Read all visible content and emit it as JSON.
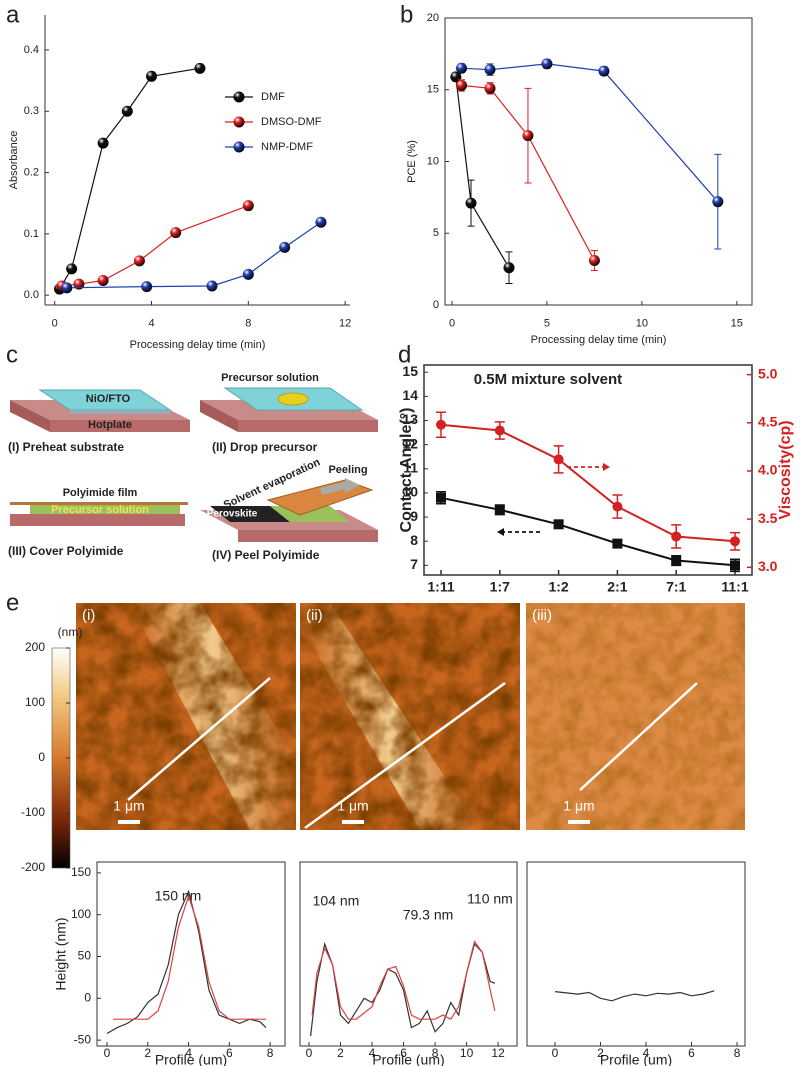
{
  "panel_labels": [
    "a",
    "b",
    "c",
    "d",
    "e"
  ],
  "chart_data": [
    {
      "type": "line",
      "xlabel": "Processing delay time (min)",
      "ylabel": "Absorbance",
      "xlim": [
        -0.4,
        12.2
      ],
      "ylim": [
        -0.016,
        0.457
      ],
      "xticks": [
        0,
        4,
        8,
        12
      ],
      "yticks": [
        {
          "value": 0,
          "label": "0.0"
        },
        0.1,
        0.2,
        0.3,
        0.4
      ],
      "legend": "upper right",
      "marker": "sphere",
      "series": [
        {
          "name": "DMF",
          "color": "#111111",
          "x": [
            0.2,
            0.7,
            2,
            3,
            4,
            6
          ],
          "values": [
            0.01,
            0.043,
            0.248,
            0.3,
            0.357,
            0.37
          ]
        },
        {
          "name": "DMSO-DMF",
          "color": "#e02020",
          "x": [
            0.3,
            1,
            2,
            3.5,
            5,
            8
          ],
          "values": [
            0.015,
            0.018,
            0.024,
            0.056,
            0.102,
            0.146
          ]
        },
        {
          "name": "NMP-DMF",
          "color": "#2040b0",
          "x": [
            0.5,
            3.8,
            6.5,
            8,
            9.5,
            11
          ],
          "values": [
            0.012,
            0.014,
            0.015,
            0.034,
            0.078,
            0.119
          ]
        }
      ]
    },
    {
      "type": "line",
      "xlabel": "Processing delay time (min)",
      "ylabel": "PCE (%)",
      "xlim": [
        -0.37,
        15.8
      ],
      "ylim": [
        0,
        20
      ],
      "xticks": [
        0,
        5,
        10,
        15
      ],
      "yticks": [
        0,
        5,
        10,
        15,
        20
      ],
      "marker": "sphere",
      "series": [
        {
          "color": "#111111",
          "x": [
            0.2,
            1,
            3
          ],
          "values": [
            15.9,
            7.1,
            2.6
          ],
          "errors": [
            0.3,
            1.6,
            1.1
          ]
        },
        {
          "color": "#e02020",
          "x": [
            0.5,
            2,
            4,
            7.5
          ],
          "values": [
            15.3,
            15.1,
            11.8,
            3.1
          ],
          "errors": [
            0.4,
            0.4,
            3.3,
            0.7
          ]
        },
        {
          "color": "#2040b0",
          "x": [
            0.5,
            2,
            5,
            8,
            14
          ],
          "values": [
            16.5,
            16.4,
            16.8,
            16.3,
            7.2
          ],
          "errors": [
            0.3,
            0.4,
            0.3,
            0.3,
            3.3
          ]
        }
      ]
    },
    {
      "type": "line",
      "title": "0.5M mixture solvent",
      "categories": [
        "1:11",
        "1:7",
        "1:2",
        "2:1",
        "7:1",
        "11:1"
      ],
      "ylabel": "Contact Angle(°)",
      "y2label": "Viscosity(cp)",
      "ylim": [
        6.6,
        15.3
      ],
      "yticks": [
        7,
        8,
        9,
        10,
        11,
        12,
        13,
        14,
        15
      ],
      "y2lim": [
        2.92,
        5.1
      ],
      "y2ticks": [
        {
          "value": 3,
          "label": "3.0"
        },
        3.5,
        {
          "value": 4,
          "label": "4.0"
        },
        4.5,
        {
          "value": 5,
          "label": "5.0"
        }
      ],
      "y2color": "#d42020",
      "series": [
        {
          "color": "#111111",
          "marker": "square",
          "values": [
            9.8,
            9.3,
            8.7,
            7.9,
            7.2,
            7.0
          ],
          "errors": [
            0.25,
            0.2,
            0.15,
            0.15,
            0.2,
            0.25
          ]
        },
        {
          "color": "#d42020",
          "marker": "circle",
          "axis": "y2",
          "values": [
            4.48,
            4.42,
            4.12,
            3.63,
            3.32,
            3.27
          ],
          "errors": [
            0.13,
            0.09,
            0.14,
            0.12,
            0.12,
            0.09
          ]
        }
      ]
    },
    {
      "type": "line",
      "xlabel": "Profile (um)",
      "ylabel": "Height (nm)",
      "xlim": [
        -0.49,
        8.73
      ],
      "ylim": [
        -57,
        163
      ],
      "xticks": [
        0,
        2,
        4,
        6,
        8
      ],
      "yticks": [
        -50,
        0,
        50,
        100,
        150
      ],
      "annotations": [
        "150 nm"
      ],
      "series": [
        {
          "color": "#333333",
          "x": [
            0,
            0.5,
            1,
            1.5,
            2,
            2.5,
            3,
            3.5,
            4,
            4.5,
            5,
            5.5,
            6,
            6.5,
            7,
            7.5,
            7.8
          ],
          "values": [
            -42,
            -35,
            -30,
            -22,
            -5,
            5,
            40,
            100,
            128,
            80,
            10,
            -20,
            -25,
            -30,
            -25,
            -28,
            -35
          ]
        },
        {
          "color": "#e04040",
          "x": [
            0.3,
            2,
            2.5,
            3,
            3.5,
            4,
            4.5,
            5,
            5.5,
            6,
            7.8
          ],
          "values": [
            -25,
            -25,
            -15,
            20,
            85,
            122,
            85,
            20,
            -15,
            -25,
            -25
          ]
        }
      ]
    },
    {
      "type": "line",
      "xlabel": "Profile (um)",
      "xlim": [
        -0.57,
        13.2
      ],
      "ylim": [
        -57,
        163
      ],
      "xticks": [
        0,
        2,
        4,
        6,
        8,
        10,
        12
      ],
      "annotations": [
        "104 nm",
        "79.3 nm",
        "110 nm"
      ],
      "series": [
        {
          "color": "#333333",
          "x": [
            0.1,
            0.5,
            1,
            1.5,
            2,
            2.5,
            3,
            3.5,
            4,
            4.5,
            5,
            5.5,
            6,
            6.5,
            7,
            7.5,
            8,
            8.5,
            9,
            9.5,
            10,
            10.5,
            11,
            11.5,
            11.8
          ],
          "values": [
            -45,
            20,
            65,
            40,
            -20,
            -30,
            -15,
            0,
            -5,
            10,
            35,
            30,
            10,
            -35,
            -30,
            -15,
            -40,
            -30,
            -5,
            -20,
            30,
            65,
            55,
            20,
            18
          ]
        },
        {
          "color": "#e04040",
          "x": [
            0.2,
            0.5,
            1,
            1.5,
            2,
            2.5,
            3,
            4,
            4.5,
            5,
            5.5,
            6,
            6.5,
            7,
            8,
            8.5,
            9,
            9.5,
            10,
            10.5,
            11,
            11.5,
            11.8
          ],
          "values": [
            -20,
            30,
            60,
            40,
            -10,
            -25,
            -25,
            -10,
            15,
            35,
            38,
            15,
            -20,
            -25,
            -25,
            -20,
            -25,
            -10,
            30,
            68,
            55,
            10,
            -15
          ]
        }
      ]
    },
    {
      "type": "line",
      "xlabel": "Profile (um)",
      "xlim": [
        -1.23,
        8.35
      ],
      "ylim": [
        -57,
        163
      ],
      "xticks": [
        0,
        2,
        4,
        6,
        8
      ],
      "series": [
        {
          "color": "#333333",
          "x": [
            0,
            1,
            1.5,
            2,
            2.5,
            3,
            3.5,
            4,
            4.5,
            5,
            5.5,
            6,
            6.5,
            7
          ],
          "values": [
            8,
            5,
            7,
            0,
            -3,
            2,
            5,
            3,
            6,
            5,
            7,
            3,
            5,
            9
          ]
        }
      ]
    }
  ],
  "diagram": {
    "steps": [
      {
        "caption": "(I) Preheat substrate",
        "labels": [
          "NiO/FTO",
          "Hotplate"
        ]
      },
      {
        "caption": "(II) Drop precursor",
        "labels": [
          "Precursor solution"
        ]
      },
      {
        "caption": "(III) Cover Polyimide",
        "labels": [
          "Polyimide film",
          "Precursor solution"
        ]
      },
      {
        "caption": "(IV) Peel Polyimide",
        "labels": [
          "Solvent evaporation",
          "Peeling",
          "Perovskite"
        ]
      }
    ]
  },
  "afm": {
    "unit": "(nm)",
    "ticks": [
      200,
      100,
      0,
      -100,
      -200
    ],
    "images": [
      {
        "label": "(i)",
        "scale_bar": "1 μm"
      },
      {
        "label": "(ii)",
        "scale_bar": "1 μm"
      },
      {
        "label": "(iii)",
        "scale_bar": "1 μm"
      }
    ]
  }
}
